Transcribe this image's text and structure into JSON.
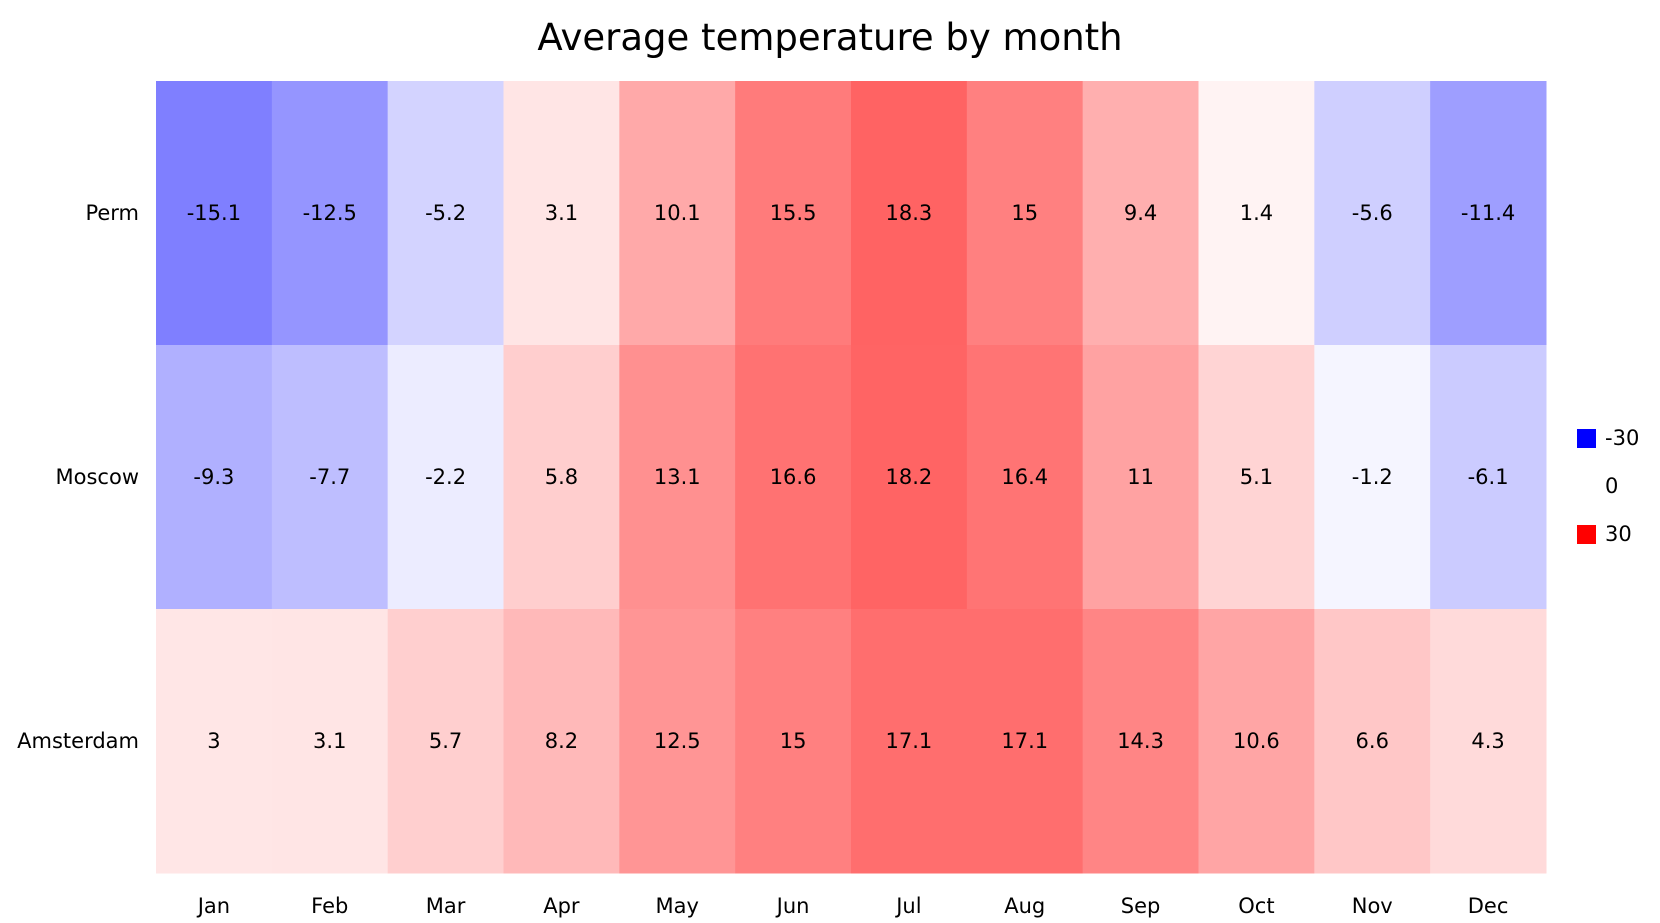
{
  "chart_data": {
    "type": "heatmap",
    "title": "Average temperature by month",
    "xlabel": "",
    "ylabel": "",
    "x_categories": [
      "Jan",
      "Feb",
      "Mar",
      "Apr",
      "May",
      "Jun",
      "Jul",
      "Aug",
      "Sep",
      "Oct",
      "Nov",
      "Dec"
    ],
    "y_categories": [
      "Perm",
      "Moscow",
      "Amsterdam"
    ],
    "values": [
      [
        -15.1,
        -12.5,
        -5.2,
        3.1,
        10.1,
        15.5,
        18.3,
        15,
        9.4,
        1.4,
        -5.6,
        -11.4
      ],
      [
        -9.3,
        -7.7,
        -2.2,
        5.8,
        13.1,
        16.6,
        18.2,
        16.4,
        11,
        5.1,
        -1.2,
        -6.1
      ],
      [
        3,
        3.1,
        5.7,
        8.2,
        12.5,
        15,
        17.1,
        17.1,
        14.3,
        10.6,
        6.6,
        4.3
      ]
    ],
    "color_scale": {
      "min": -30,
      "mid": 0,
      "max": 30,
      "min_color": "#0000ff",
      "mid_color": "#ffffff",
      "max_color": "#ff0000"
    },
    "legend": {
      "position": "right",
      "entries": [
        {
          "label": "-30",
          "color": "#0000ff"
        },
        {
          "label": "0",
          "color": "#ffffff"
        },
        {
          "label": "30",
          "color": "#ff0000"
        }
      ]
    },
    "grid": false
  }
}
